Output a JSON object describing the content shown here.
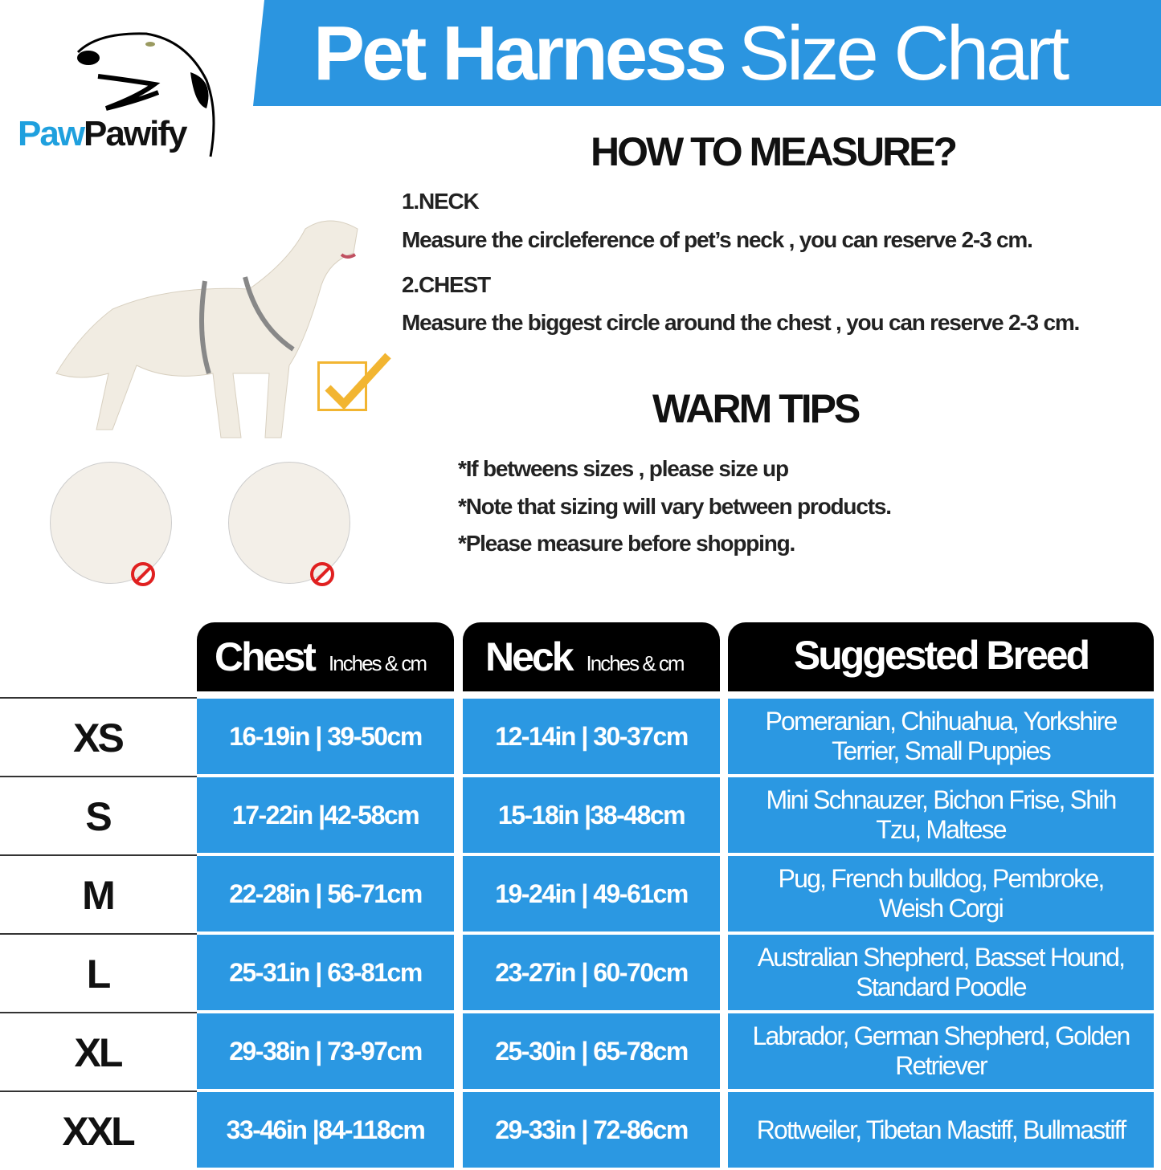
{
  "brand": {
    "logo_prefix": "Paw",
    "logo_suffix": "Pawify",
    "brand_color": "#1fa0de"
  },
  "title": {
    "bold": "Pet Harness",
    "light": "Size Chart",
    "banner_color": "#2b95e0"
  },
  "measure": {
    "heading": "HOW TO MEASURE?",
    "neck_label": "1.NECK",
    "neck_text": "Measure the circleference of pet’s neck , you can reserve 2-3 cm.",
    "chest_label": "2.CHEST",
    "chest_text": "Measure the biggest circle around the chest , you can reserve 2-3 cm."
  },
  "tips": {
    "heading": "WARM TIPS",
    "items": [
      "*If betweens sizes , please size up",
      "*Note that sizing will vary between products.",
      "*Please measure before shopping."
    ]
  },
  "icons": [
    "dog-logo-icon",
    "dog-illustration-icon",
    "checkmark-icon",
    "prohibited-icon"
  ],
  "table": {
    "headers": {
      "chest": "Chest",
      "chest_unit": "Inches & cm",
      "neck": "Neck",
      "neck_unit": "Inches & cm",
      "breed": "Suggested Breed"
    },
    "cell_color": "#2b98e2",
    "rows": [
      {
        "size": "XS",
        "chest": "16-19in | 39-50cm",
        "neck": "12-14in | 30-37cm",
        "breed": "Pomeranian, Chihuahua, Yorkshire Terrier, Small Puppies"
      },
      {
        "size": "S",
        "chest": "17-22in |42-58cm",
        "neck": "15-18in |38-48cm",
        "breed": "Mini Schnauzer, Bichon Frise, Shih Tzu, Maltese"
      },
      {
        "size": "M",
        "chest": "22-28in | 56-71cm",
        "neck": "19-24in | 49-61cm",
        "breed": "Pug, French bulldog, Pembroke, Weish Corgi"
      },
      {
        "size": "L",
        "chest": "25-31in | 63-81cm",
        "neck": "23-27in | 60-70cm",
        "breed": "Australian Shepherd, Basset Hound, Standard Poodle"
      },
      {
        "size": "XL",
        "chest": "29-38in | 73-97cm",
        "neck": "25-30in | 65-78cm",
        "breed": "Labrador, German Shepherd, Golden Retriever"
      },
      {
        "size": "XXL",
        "chest": "33-46in |84-118cm",
        "neck": "29-33in | 72-86cm",
        "breed": "Rottweiler, Tibetan Mastiff, Bullmastiff"
      }
    ]
  }
}
